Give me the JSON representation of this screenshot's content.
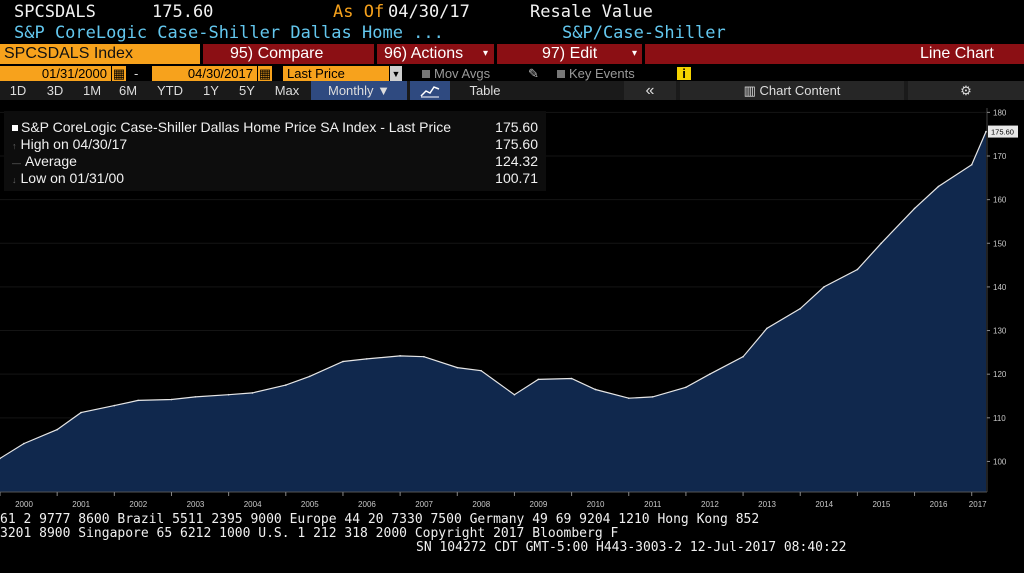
{
  "header": {
    "ticker": "SPCSDALS",
    "price": "175.60",
    "as_of_label": "As Of",
    "as_of_date": "04/30/17",
    "field": "Resale Value",
    "name": "S&P CoreLogic Case-Shiller Dallas Home ...",
    "source": "S&P/Case-Shiller"
  },
  "toolbar": {
    "security": "SPCSDALS Index",
    "compare": "95) Compare",
    "actions": "96) Actions",
    "edit": "97) Edit",
    "chart_type": "Line Chart"
  },
  "controls": {
    "start_date": "01/31/2000",
    "dash": "-",
    "end_date": "04/30/2017",
    "field_select": "Last Price",
    "mov_avgs": "Mov Avgs",
    "key_events": "Key Events",
    "info": "i"
  },
  "ranges": {
    "items": [
      "1D",
      "3D",
      "1M",
      "6M",
      "YTD",
      "1Y",
      "5Y",
      "Max"
    ],
    "period": "Monthly ▼",
    "table": "Table",
    "collapse": "«",
    "chart_content": "Chart Content",
    "settings": "⚙"
  },
  "legend": {
    "series": "S&P CoreLogic Case-Shiller Dallas Home Price SA Index - Last Price",
    "series_value": "175.60",
    "high_label": "High on 04/30/17",
    "high_value": "175.60",
    "avg_label": "Average",
    "avg_value": "124.32",
    "low_label": "Low on 01/31/00",
    "low_value": "100.71"
  },
  "colors": {
    "area_fill": "#10284d",
    "area_line": "#e6e6e6",
    "toolbar_red": "#8b0f14",
    "orange": "#f7a21c",
    "cyan": "#63c7ee"
  },
  "chart_data": {
    "type": "area",
    "x": [
      "2000-01",
      "2000-06",
      "2001-01",
      "2001-06",
      "2002-01",
      "2002-06",
      "2003-01",
      "2003-06",
      "2004-01",
      "2004-06",
      "2005-01",
      "2005-06",
      "2006-01",
      "2006-06",
      "2007-01",
      "2007-06",
      "2008-01",
      "2008-06",
      "2009-01",
      "2009-06",
      "2010-01",
      "2010-06",
      "2011-01",
      "2011-06",
      "2012-01",
      "2012-06",
      "2013-01",
      "2013-06",
      "2014-01",
      "2014-06",
      "2015-01",
      "2015-06",
      "2016-01",
      "2016-06",
      "2017-01",
      "2017-04"
    ],
    "values": [
      100.7,
      104.1,
      107.3,
      111.2,
      112.8,
      114.0,
      114.2,
      114.8,
      115.3,
      115.7,
      117.5,
      119.5,
      122.9,
      123.5,
      124.2,
      124.0,
      121.5,
      120.8,
      115.3,
      118.8,
      119.0,
      116.5,
      114.5,
      114.8,
      117.0,
      120.0,
      124.0,
      130.5,
      135.0,
      140.0,
      144.0,
      150.0,
      158.0,
      163.0,
      168.0,
      175.6
    ],
    "last_label": "175.60",
    "x_ticks": [
      "2000",
      "2001",
      "2002",
      "2003",
      "2004",
      "2005",
      "2006",
      "2007",
      "2008",
      "2009",
      "2010",
      "2011",
      "2012",
      "2013",
      "2014",
      "2015",
      "2016",
      "2017"
    ],
    "y_ticks": [
      100,
      110,
      120,
      130,
      140,
      150,
      160,
      170,
      180
    ],
    "ylim": [
      93,
      181
    ]
  },
  "footer": {
    "line1": "61 2 9777 8600 Brazil 5511 2395 9000 Europe 44 20 7330 7500 Germany 49 69 9204 1210 Hong Kong 852",
    "line2": "3201 8900        Singapore 65 6212 1000       U.S. 1 212 318 2000        Copyright 2017 Bloomberg F",
    "line3": "SN 104272 CDT  GMT-5:00 H443-3003-2 12-Jul-2017 08:40:22"
  }
}
